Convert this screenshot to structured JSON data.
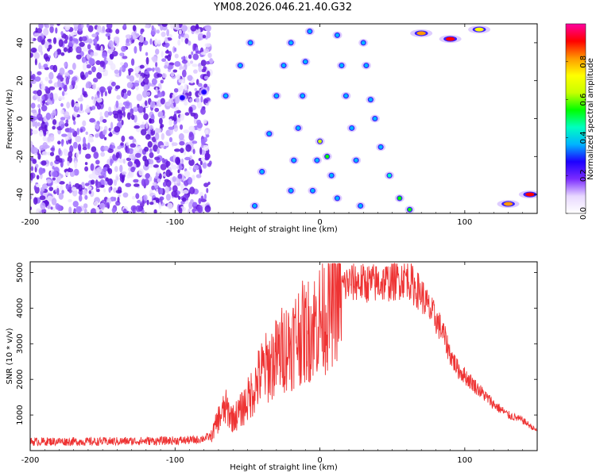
{
  "title": "YM08.2026.046.21.40.G32",
  "colorbar": {
    "label": "Normalized spectral amplitude",
    "ticks": [
      "0.0",
      "0.2",
      "0.4",
      "0.6",
      "0.8"
    ],
    "stops": [
      "#ffffff",
      "#e8d8ff",
      "#7b2cff",
      "#1d00ff",
      "#00b4ff",
      "#00ffc0",
      "#00ff00",
      "#c8ff00",
      "#ffff00",
      "#ff9900",
      "#ff0000",
      "#ff00a0"
    ]
  },
  "chart_data": [
    {
      "type": "heatmap",
      "title": "",
      "xlabel": "Height of straight line (km)",
      "ylabel": "Frequency (Hz)",
      "xlim": [
        -200,
        150
      ],
      "ylim": [
        -50,
        50
      ],
      "xticks": [
        "-200",
        "-100",
        "0",
        "100"
      ],
      "xtick_values": [
        -200,
        -100,
        0,
        100
      ],
      "yticks": [
        "-40",
        "-20",
        "0",
        "20",
        "40"
      ],
      "ytick_values": [
        -40,
        -20,
        0,
        20,
        40
      ],
      "ridge_points": [
        {
          "x": -95,
          "y": 11,
          "z": 0.25
        },
        {
          "x": -80,
          "y": 14,
          "z": 0.3
        },
        {
          "x": -65,
          "y": 12,
          "z": 0.4
        },
        {
          "x": -55,
          "y": 28,
          "z": 0.4
        },
        {
          "x": -48,
          "y": 40,
          "z": 0.35
        },
        {
          "x": -45,
          "y": -46,
          "z": 0.4
        },
        {
          "x": -40,
          "y": -28,
          "z": 0.4
        },
        {
          "x": -35,
          "y": -8,
          "z": 0.4
        },
        {
          "x": -30,
          "y": 12,
          "z": 0.4
        },
        {
          "x": -25,
          "y": 28,
          "z": 0.4
        },
        {
          "x": -20,
          "y": 40,
          "z": 0.4
        },
        {
          "x": -20,
          "y": -38,
          "z": 0.4
        },
        {
          "x": -18,
          "y": -22,
          "z": 0.4
        },
        {
          "x": -15,
          "y": -5,
          "z": 0.4
        },
        {
          "x": -12,
          "y": 12,
          "z": 0.4
        },
        {
          "x": -10,
          "y": 30,
          "z": 0.4
        },
        {
          "x": -7,
          "y": 46,
          "z": 0.4
        },
        {
          "x": -5,
          "y": -38,
          "z": 0.4
        },
        {
          "x": -2,
          "y": -22,
          "z": 0.4
        },
        {
          "x": 0,
          "y": -12,
          "z": 0.6
        },
        {
          "x": 5,
          "y": -20,
          "z": 0.5
        },
        {
          "x": 8,
          "y": -30,
          "z": 0.4
        },
        {
          "x": 12,
          "y": -42,
          "z": 0.4
        },
        {
          "x": 12,
          "y": 44,
          "z": 0.4
        },
        {
          "x": 15,
          "y": 28,
          "z": 0.4
        },
        {
          "x": 18,
          "y": 12,
          "z": 0.4
        },
        {
          "x": 22,
          "y": -5,
          "z": 0.4
        },
        {
          "x": 25,
          "y": -22,
          "z": 0.4
        },
        {
          "x": 28,
          "y": -46,
          "z": 0.4
        },
        {
          "x": 30,
          "y": 40,
          "z": 0.4
        },
        {
          "x": 32,
          "y": 28,
          "z": 0.4
        },
        {
          "x": 35,
          "y": 10,
          "z": 0.4
        },
        {
          "x": 38,
          "y": 0,
          "z": 0.4
        },
        {
          "x": 42,
          "y": -15,
          "z": 0.4
        },
        {
          "x": 48,
          "y": -30,
          "z": 0.45
        },
        {
          "x": 55,
          "y": -42,
          "z": 0.5
        },
        {
          "x": 62,
          "y": -48,
          "z": 0.5
        },
        {
          "x": 70,
          "y": 45,
          "z": 0.8
        },
        {
          "x": 90,
          "y": 42,
          "z": 0.9
        },
        {
          "x": 110,
          "y": 47,
          "z": 0.7
        },
        {
          "x": 130,
          "y": -45,
          "z": 0.8
        },
        {
          "x": 145,
          "y": -40,
          "z": 0.9
        }
      ]
    },
    {
      "type": "line",
      "title": "",
      "xlabel": "Height of straight line (km)",
      "ylabel": "SNR (10 * v/v)",
      "xlim": [
        -200,
        150
      ],
      "ylim": [
        0,
        5300
      ],
      "xticks": [
        "-200",
        "-100",
        "0",
        "100"
      ],
      "xtick_values": [
        -200,
        -100,
        0,
        100
      ],
      "yticks": [
        "1000",
        "2000",
        "3000",
        "4000",
        "5000"
      ],
      "ytick_values": [
        1000,
        2000,
        3000,
        4000,
        5000
      ],
      "series": [
        {
          "color": "#ee3333",
          "x": [
            -200,
            -180,
            -160,
            -140,
            -120,
            -100,
            -85,
            -75,
            -70,
            -65,
            -60,
            -55,
            -50,
            -45,
            -40,
            -35,
            -30,
            -25,
            -20,
            -15,
            -10,
            -5,
            0,
            5,
            10,
            15,
            20,
            25,
            30,
            40,
            50,
            55,
            60,
            65,
            70,
            75,
            80,
            85,
            90,
            95,
            100,
            110,
            120,
            130,
            140,
            150
          ],
          "y": [
            250,
            260,
            250,
            260,
            270,
            280,
            300,
            400,
            900,
            1200,
            900,
            1100,
            1400,
            1800,
            2200,
            2400,
            2600,
            2900,
            3000,
            3300,
            3300,
            3500,
            3700,
            3900,
            4300,
            4600,
            4700,
            4750,
            4700,
            4700,
            4750,
            4800,
            4900,
            4600,
            4400,
            4000,
            3700,
            3300,
            2700,
            2300,
            2100,
            1700,
            1300,
            1000,
            850,
            550
          ]
        }
      ]
    }
  ]
}
